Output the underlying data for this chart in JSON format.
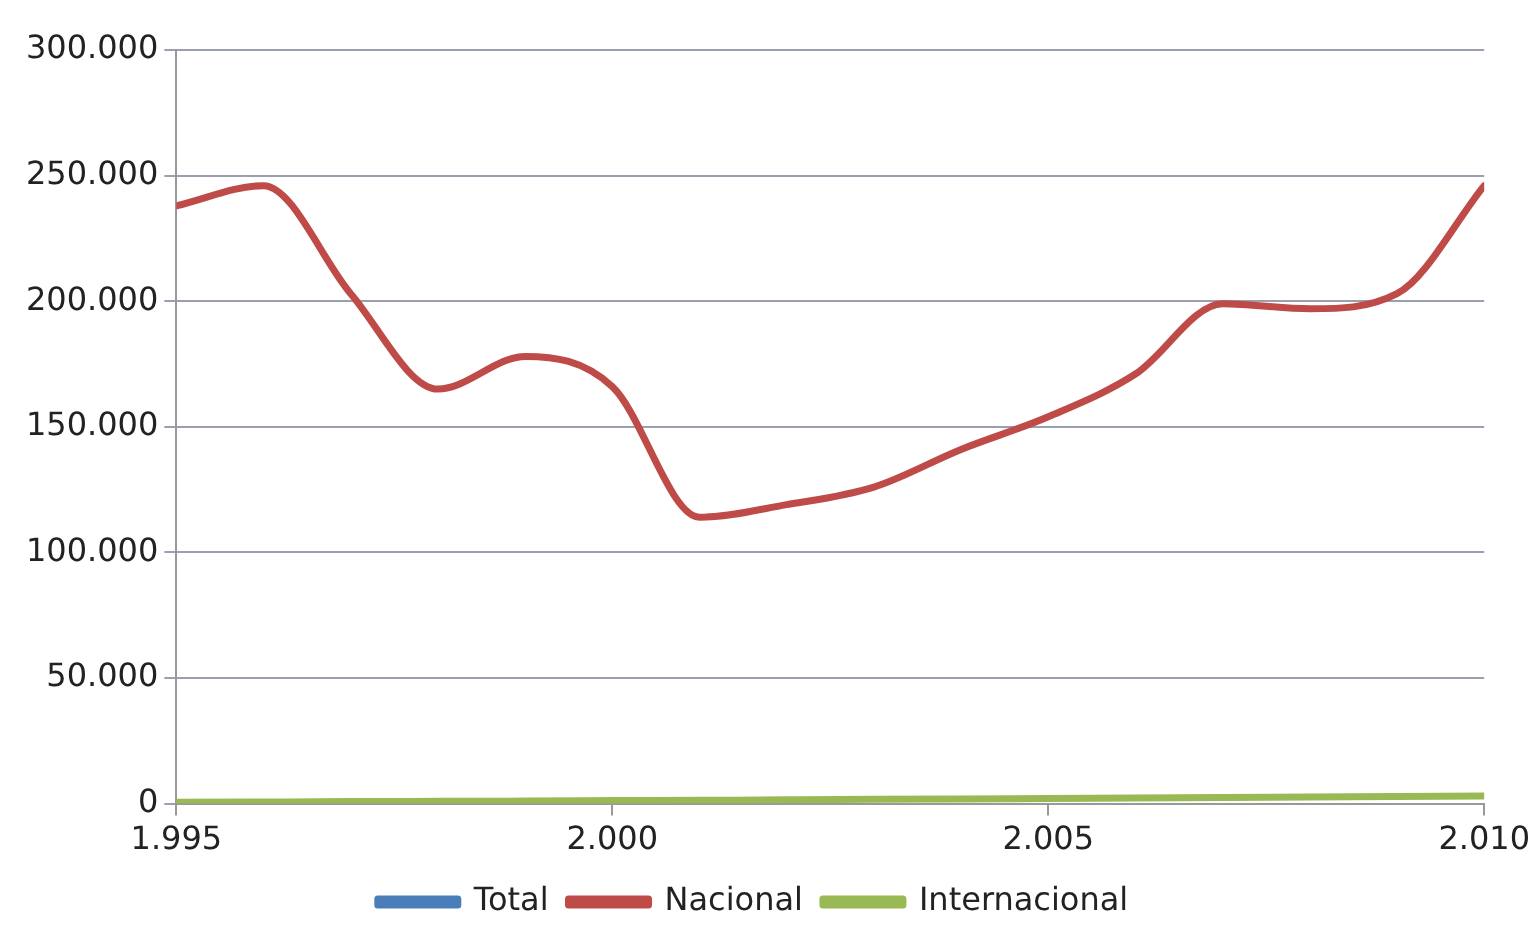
{
  "chart_data": {
    "type": "line",
    "x": [
      1995,
      1996,
      1997,
      1998,
      1999,
      2000,
      2001,
      2002,
      2003,
      2004,
      2005,
      2006,
      2007,
      2008,
      2009,
      2010
    ],
    "series": [
      {
        "name": "Total",
        "color": "#4a7ebb",
        "values": [
          null,
          null,
          null,
          null,
          null,
          null,
          null,
          null,
          null,
          null,
          null,
          null,
          null,
          null,
          null,
          null
        ]
      },
      {
        "name": "Nacional",
        "color": "#be4b48",
        "values": [
          238000,
          246000,
          203000,
          165000,
          178000,
          166000,
          114000,
          119000,
          126000,
          141000,
          154000,
          171000,
          199000,
          197000,
          203000,
          246000
        ]
      },
      {
        "name": "Internacional",
        "color": "#98b954",
        "values": [
          500,
          600,
          800,
          900,
          1000,
          1200,
          1300,
          1500,
          1700,
          1800,
          2000,
          2200,
          2400,
          2600,
          2800,
          3000
        ]
      }
    ],
    "xlim": [
      1995,
      2010
    ],
    "xticks": [
      {
        "value": 1995,
        "label": "1.995"
      },
      {
        "value": 2000,
        "label": "2.000"
      },
      {
        "value": 2005,
        "label": "2.005"
      },
      {
        "value": 2010,
        "label": "2.010"
      }
    ],
    "ylim": [
      0,
      300000
    ],
    "yticks": [
      {
        "value": 0,
        "label": "0"
      },
      {
        "value": 50000,
        "label": "50.000"
      },
      {
        "value": 100000,
        "label": "100.000"
      },
      {
        "value": 150000,
        "label": "150.000"
      },
      {
        "value": 200000,
        "label": "200.000"
      },
      {
        "value": 250000,
        "label": "250.000"
      },
      {
        "value": 300000,
        "label": "300.000"
      }
    ],
    "grid": "y",
    "legend": "bottom",
    "marker": "none",
    "line_style": "solid"
  }
}
